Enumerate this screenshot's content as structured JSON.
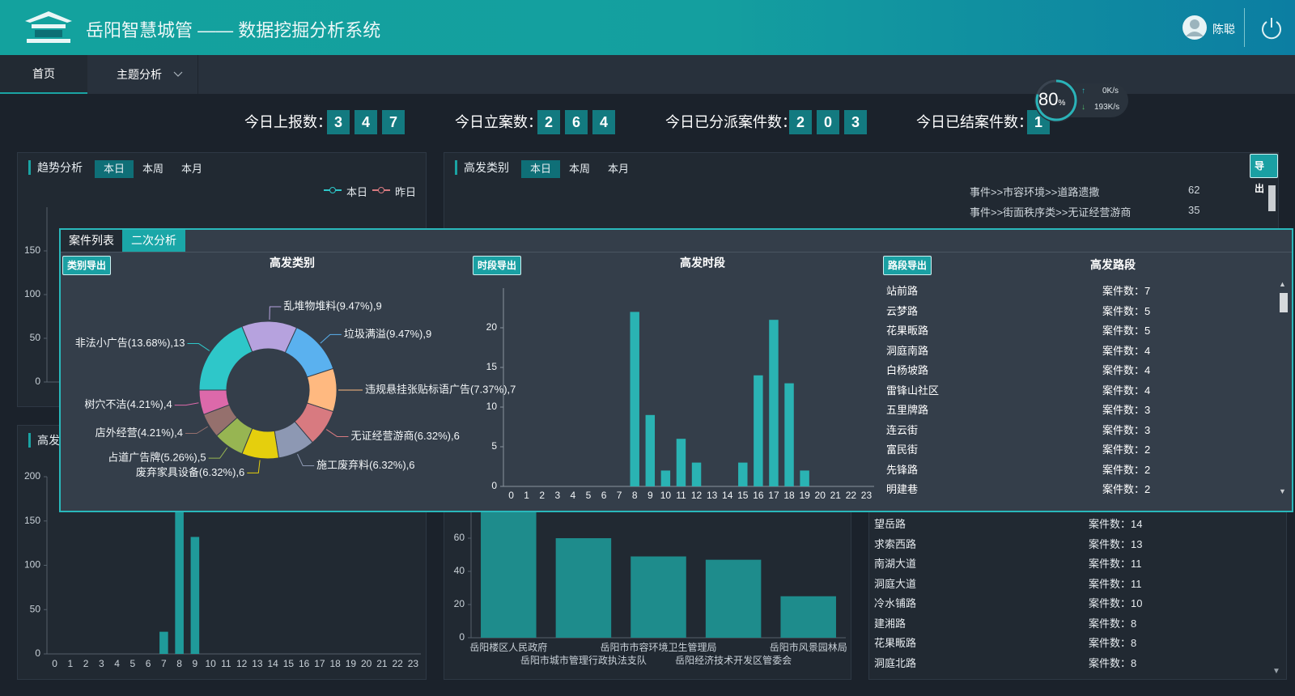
{
  "header": {
    "title": "岳阳智慧城管 —— 数据挖掘分析系统",
    "user": "陈聪"
  },
  "nav": {
    "items": [
      "首页",
      "主题分析"
    ]
  },
  "stats": [
    {
      "label": "今日上报数：",
      "digits": [
        "3",
        "4",
        "7"
      ]
    },
    {
      "label": "今日立案数：",
      "digits": [
        "2",
        "6",
        "4"
      ]
    },
    {
      "label": "今日已分派案件数：",
      "digits": [
        "2",
        "0",
        "3"
      ]
    },
    {
      "label": "今日已结案件数：",
      "digits": [
        "1"
      ]
    }
  ],
  "network": {
    "usage": "80",
    "usage_unit": "%",
    "upload": "0K/s",
    "download": "193K/s"
  },
  "trend_panel": {
    "title": "趋势分析",
    "tabs": [
      "本日",
      "本周",
      "本月"
    ],
    "legend": [
      {
        "name": "本日",
        "color": "#2ec7c9"
      },
      {
        "name": "昨日",
        "color": "#d87a80"
      }
    ],
    "chart_data": {
      "type": "line",
      "ylim": [
        0,
        200
      ],
      "yticks": [
        0,
        50,
        100,
        150
      ]
    }
  },
  "category_panel": {
    "title": "高发类别",
    "tabs": [
      "本日",
      "本周",
      "本月"
    ],
    "export": "导出",
    "rows": [
      {
        "name": "事件>>市容环境>>道路遗撒",
        "count": 62
      },
      {
        "name": "事件>>街面秩序类>>无证经营游商",
        "count": 35
      }
    ]
  },
  "hour_panel": {
    "title": "高发",
    "chart_data": {
      "type": "bar",
      "categories": [
        "0",
        "1",
        "2",
        "3",
        "4",
        "5",
        "6",
        "7",
        "8",
        "9",
        "10",
        "11",
        "12",
        "13",
        "14",
        "15",
        "16",
        "17",
        "18",
        "19",
        "20",
        "21",
        "22",
        "23"
      ],
      "values": [
        0,
        0,
        0,
        0,
        0,
        0,
        0,
        25,
        180,
        132,
        0,
        0,
        0,
        0,
        0,
        0,
        0,
        0,
        0,
        0,
        0,
        0,
        0,
        0
      ],
      "color": "#1f9a9a",
      "ylim": [
        0,
        200
      ],
      "yticks": [
        0,
        50,
        100,
        150,
        200
      ]
    }
  },
  "dept_panel": {
    "chart_data": {
      "type": "bar",
      "categories": [
        "岳阳楼区人民政府",
        "岳阳市城市管理行政执法支队",
        "岳阳市市容环境卫生管理局",
        "岳阳经济技术开发区管委会",
        "岳阳市风景园林局"
      ],
      "values": [
        90,
        60,
        49,
        47,
        25
      ],
      "color": "#1e8c8c",
      "ylim": [
        0,
        100
      ],
      "yticks": [
        0,
        20,
        40,
        60
      ]
    }
  },
  "road_panel": {
    "rows": [
      {
        "name": "望岳路",
        "count": "案件数：14"
      },
      {
        "name": "求索西路",
        "count": "案件数：13"
      },
      {
        "name": "南湖大道",
        "count": "案件数：11"
      },
      {
        "name": "洞庭大道",
        "count": "案件数：11"
      },
      {
        "name": "冷水铺路",
        "count": "案件数：10"
      },
      {
        "name": "建湘路",
        "count": "案件数：8"
      },
      {
        "name": "花果畈路",
        "count": "案件数：8"
      },
      {
        "name": "洞庭北路",
        "count": "案件数：8"
      }
    ]
  },
  "modal": {
    "tabs": [
      "案件列表",
      "二次分析"
    ],
    "category": {
      "export": "类别导出",
      "chart_data": {
        "type": "pie",
        "title": "高发类别",
        "values": [
          13,
          9,
          9,
          7,
          6,
          6,
          6,
          5,
          4,
          4
        ],
        "value_labels": [
          "非法小广告(13.68%),13",
          "乱堆物堆料(9.47%),9",
          "垃圾满溢(9.47%),9",
          "违规悬挂张贴标语广告(7.37%),7",
          "无证经营游商(6.32%),6",
          "施工废弃料(6.32%),6",
          "废弃家具设备(6.32%),6",
          "占道广告牌(5.26%),5",
          "店外经营(4.21%),4",
          "树穴不洁(4.21%),4"
        ],
        "colors": [
          "#2ec7c9",
          "#b6a2de",
          "#5ab1ef",
          "#ffb980",
          "#d87a80",
          "#8d98b3",
          "#e5cf0d",
          "#97b552",
          "#95706d",
          "#dc69aa"
        ]
      }
    },
    "hour": {
      "export": "时段导出",
      "chart_data": {
        "type": "bar",
        "title": "高发时段",
        "categories": [
          "0",
          "1",
          "2",
          "3",
          "4",
          "5",
          "6",
          "7",
          "8",
          "9",
          "10",
          "11",
          "12",
          "13",
          "14",
          "15",
          "16",
          "17",
          "18",
          "19",
          "20",
          "21",
          "22",
          "23"
        ],
        "values": [
          0,
          0,
          0,
          0,
          0,
          0,
          0,
          0,
          22,
          9,
          2,
          6,
          3,
          0,
          0,
          3,
          14,
          21,
          13,
          2,
          0,
          0,
          0,
          0
        ],
        "color": "#2ab3b3",
        "ylim": [
          0,
          25
        ],
        "yticks": [
          0,
          5,
          10,
          15,
          20
        ]
      }
    },
    "road": {
      "export": "路段导出",
      "title": "高发路段",
      "rows": [
        {
          "name": "站前路",
          "count": "案件数：7"
        },
        {
          "name": "云梦路",
          "count": "案件数：5"
        },
        {
          "name": "花果畈路",
          "count": "案件数：5"
        },
        {
          "name": "洞庭南路",
          "count": "案件数：4"
        },
        {
          "name": "白杨坡路",
          "count": "案件数：4"
        },
        {
          "name": "雷锋山社区",
          "count": "案件数：4"
        },
        {
          "name": "五里牌路",
          "count": "案件数：3"
        },
        {
          "name": "连云街",
          "count": "案件数：3"
        },
        {
          "name": "富民街",
          "count": "案件数：2"
        },
        {
          "name": "先锋路",
          "count": "案件数：2"
        },
        {
          "name": "明建巷",
          "count": "案件数：2"
        }
      ]
    }
  }
}
